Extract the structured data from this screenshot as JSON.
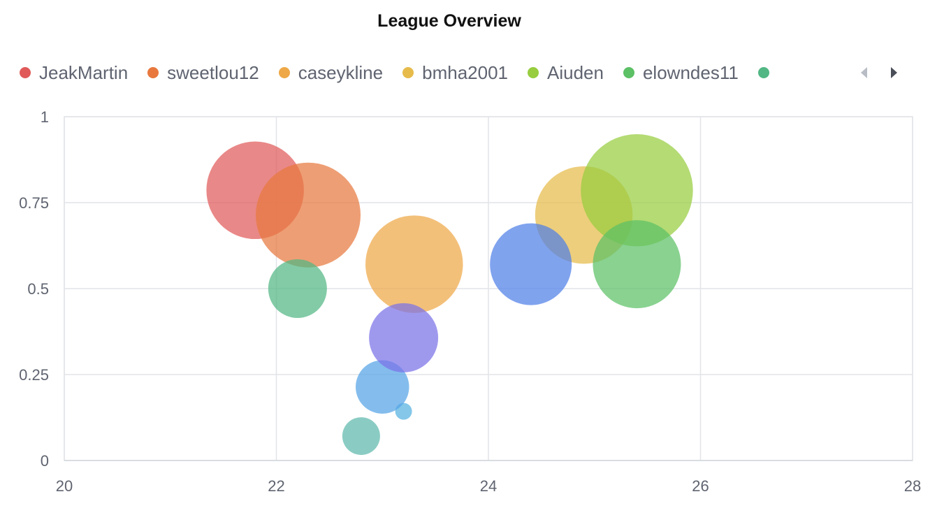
{
  "chart_data": {
    "type": "scatter",
    "title": "League Overview",
    "xlabel": "",
    "ylabel": "",
    "xlim": [
      20,
      28
    ],
    "ylim": [
      0,
      1
    ],
    "x_ticks": [
      20,
      22,
      24,
      26,
      28
    ],
    "y_ticks": [
      0,
      0.25,
      0.5,
      0.75,
      1
    ],
    "y_tick_labels": [
      "0",
      "0.25",
      "0.5",
      "0.75",
      "1"
    ],
    "grid": true,
    "legend_position": "top",
    "legend_paged": true,
    "series": [
      {
        "name": "JeakMartin",
        "color": "#e05a5a",
        "points": [
          {
            "x": 21.8,
            "y": 0.786,
            "size": 0.93
          }
        ]
      },
      {
        "name": "sweetlou12",
        "color": "#e8783e",
        "points": [
          {
            "x": 22.3,
            "y": 0.714,
            "size": 1.0
          }
        ]
      },
      {
        "name": "caseykline",
        "color": "#eea847",
        "points": [
          {
            "x": 23.3,
            "y": 0.571,
            "size": 0.93
          }
        ]
      },
      {
        "name": "bmha2001",
        "color": "#e6bb4a",
        "points": [
          {
            "x": 24.9,
            "y": 0.714,
            "size": 0.93
          }
        ]
      },
      {
        "name": "Aiuden",
        "color": "#97cd3e",
        "points": [
          {
            "x": 25.4,
            "y": 0.786,
            "size": 1.07
          }
        ]
      },
      {
        "name": "elowndes11",
        "color": "#5cc065",
        "points": [
          {
            "x": 25.4,
            "y": 0.571,
            "size": 0.84
          }
        ]
      },
      {
        "name": "",
        "color": "#52b784",
        "points": [
          {
            "x": 22.2,
            "y": 0.5,
            "size": 0.56
          }
        ]
      },
      {
        "name": "",
        "color": "#5db8ac",
        "points": [
          {
            "x": 22.8,
            "y": 0.071,
            "size": 0.36
          }
        ]
      },
      {
        "name": "",
        "color": "#55b2e0",
        "points": [
          {
            "x": 23.2,
            "y": 0.143,
            "size": 0.16
          }
        ]
      },
      {
        "name": "",
        "color": "#55a4e6",
        "points": [
          {
            "x": 23.0,
            "y": 0.214,
            "size": 0.51
          }
        ]
      },
      {
        "name": "",
        "color": "#4f7fe8",
        "points": [
          {
            "x": 24.4,
            "y": 0.571,
            "size": 0.78
          }
        ]
      },
      {
        "name": "",
        "color": "#7a72e8",
        "points": [
          {
            "x": 23.2,
            "y": 0.357,
            "size": 0.66
          }
        ]
      }
    ]
  },
  "legend": {
    "visible_items": [
      {
        "label": "JeakMartin",
        "color": "#e05a5a"
      },
      {
        "label": "sweetlou12",
        "color": "#e8783e"
      },
      {
        "label": "caseykline",
        "color": "#eea847"
      },
      {
        "label": "bmha2001",
        "color": "#e6bb4a"
      },
      {
        "label": "Aiuden",
        "color": "#97cd3e"
      },
      {
        "label": "elowndes11",
        "color": "#5cc065"
      },
      {
        "label": "",
        "color": "#52b784"
      }
    ],
    "prev_icon": "caret-left-icon",
    "next_icon": "caret-right-icon"
  }
}
